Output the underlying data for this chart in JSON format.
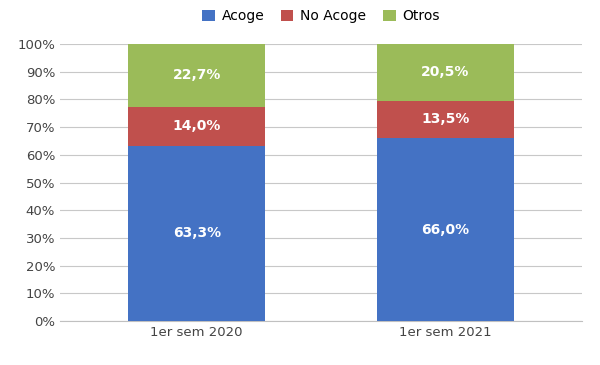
{
  "categories": [
    "1er sem 2020",
    "1er sem 2021"
  ],
  "acoge": [
    63.3,
    66.0
  ],
  "no_acoge": [
    14.0,
    13.5
  ],
  "otros": [
    22.7,
    20.5
  ],
  "colors": {
    "acoge": "#4472C4",
    "no_acoge": "#C0504D",
    "otros": "#9BBB59"
  },
  "labels": {
    "acoge": "Acoge",
    "no_acoge": "No Acoge",
    "otros": "Otros"
  },
  "label_texts": {
    "acoge": [
      "63,3%",
      "66,0%"
    ],
    "no_acoge": [
      "14,0%",
      "13,5%"
    ],
    "otros": [
      "22,7%",
      "20,5%"
    ]
  },
  "ylim": [
    0,
    100
  ],
  "yticks": [
    0,
    10,
    20,
    30,
    40,
    50,
    60,
    70,
    80,
    90,
    100
  ],
  "ytick_labels": [
    "0%",
    "10%",
    "20%",
    "30%",
    "40%",
    "50%",
    "60%",
    "70%",
    "80%",
    "90%",
    "100%"
  ],
  "background_color": "#ffffff",
  "bar_width": 0.55,
  "label_fontsize": 10,
  "tick_fontsize": 9.5,
  "legend_fontsize": 10,
  "grid_color": "#C8C8C8",
  "spine_color": "#C0C0C0"
}
